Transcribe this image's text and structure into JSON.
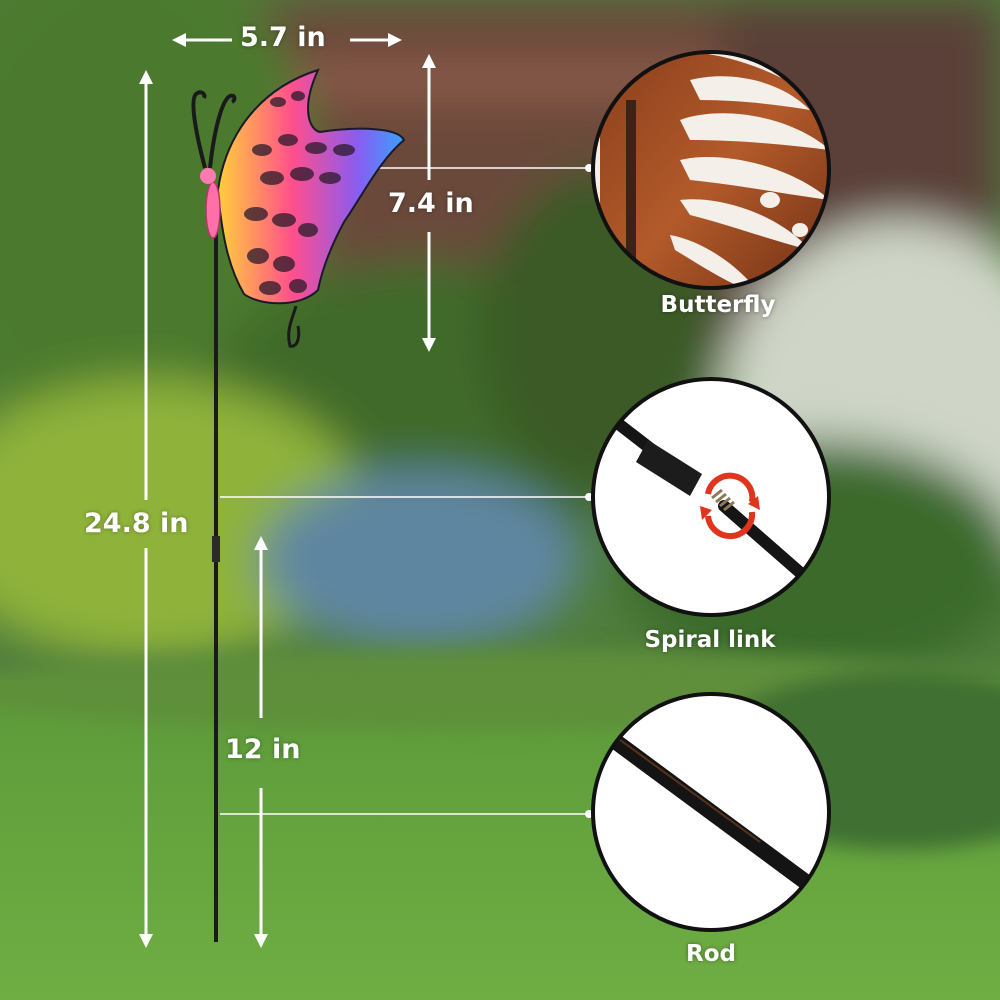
{
  "dimensions": {
    "width": "5.7 in",
    "height": "7.4 in",
    "total": "24.8 in",
    "lower": "12 in"
  },
  "callouts": [
    {
      "label": "Butterfly"
    },
    {
      "label": "Spiral link"
    },
    {
      "label": "Rod"
    }
  ],
  "colors": {
    "grass": "#5f9a3e",
    "fence": "#6b4a3a",
    "callout_border": "#111111",
    "twist_arrow": "#e0341c"
  }
}
